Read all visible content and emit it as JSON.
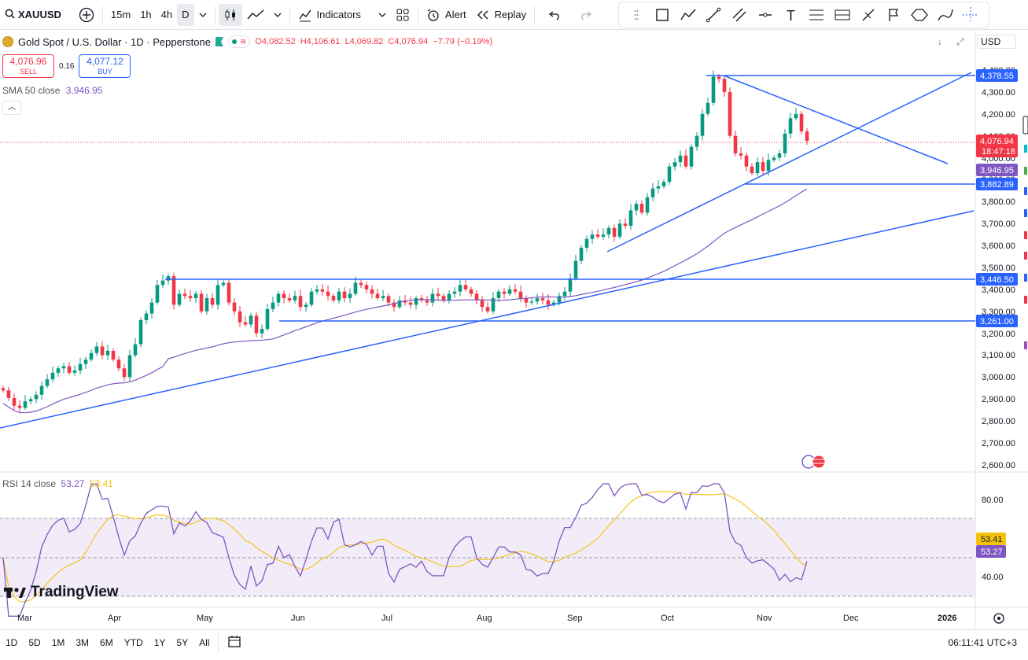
{
  "toolbar": {
    "symbol": "XAUUSD",
    "intervals": [
      "15m",
      "1h",
      "4h",
      "D"
    ],
    "active_interval": "D",
    "indicators_label": "Indicators",
    "alert_label": "Alert",
    "replay_label": "Replay"
  },
  "legend": {
    "title": "Gold Spot / U.S. Dollar · 1D · Pepperstone",
    "open": "O4,082.52",
    "high": "H4,106.61",
    "low": "L4,069.82",
    "close": "C4,076.94",
    "change": "−7.79 (−0.19%)"
  },
  "trade": {
    "sell_price": "4,076.96",
    "sell_label": "SELL",
    "spread": "0.16",
    "buy_price": "4,077.12",
    "buy_label": "BUY"
  },
  "sma": {
    "label": "SMA 50 close",
    "value": "3,946.95"
  },
  "rsi": {
    "label": "RSI 14 close",
    "value": "53.27",
    "signal": "53.41"
  },
  "price_axis": {
    "currency": "USD",
    "ticks": [
      "4,400.00",
      "4,300.00",
      "4,200.00",
      "4,100.00",
      "4,000.00",
      "3,900.00",
      "3,800.00",
      "3,700.00",
      "3,600.00",
      "3,500.00",
      "3,400.00",
      "3,300.00",
      "3,200.00",
      "3,100.00",
      "3,000.00",
      "2,900.00",
      "2,800.00",
      "2,700.00",
      "2,600.00"
    ],
    "rsi_ticks": [
      "80.00",
      "40.00"
    ],
    "tags": {
      "line_4378": "4,378.55",
      "last_price": "4,076.94",
      "countdown": "18:47:18",
      "sma": "3,946.95",
      "line_3882": "3,882.89",
      "line_3446": "3,446.50",
      "line_3261": "3,261.00",
      "rsi_signal": "53.41",
      "rsi_value": "53.27"
    }
  },
  "time_axis": [
    "Mar",
    "Apr",
    "May",
    "Jun",
    "Jul",
    "Aug",
    "Sep",
    "Oct",
    "Nov",
    "Dec",
    "2026"
  ],
  "brand": "TradingView",
  "bottombar": {
    "ranges": [
      "1D",
      "5D",
      "1M",
      "3M",
      "6M",
      "YTD",
      "1Y",
      "5Y",
      "All"
    ],
    "clock": "06:11:41 UTC+3"
  },
  "colors": {
    "up": "#089981",
    "down": "#f23645",
    "line": "#2962ff",
    "sma": "#7e57c2",
    "rsi_signal": "#f4c20d"
  },
  "chart_data": {
    "type": "candlestick",
    "ylim": [
      2600,
      4400
    ],
    "horizontal_levels": [
      4378.55,
      3882.89,
      3446.5,
      3261.0
    ],
    "last_price": 4076.94,
    "rsi_bands": [
      70,
      30
    ],
    "closes": [
      2940,
      2905,
      2870,
      2860,
      2890,
      2900,
      2920,
      2960,
      2990,
      3020,
      3040,
      3050,
      3020,
      3030,
      3060,
      3080,
      3110,
      3140,
      3100,
      3120,
      3080,
      3040,
      3000,
      3100,
      3150,
      3260,
      3290,
      3340,
      3420,
      3440,
      3460,
      3330,
      3380,
      3370,
      3360,
      3380,
      3300,
      3360,
      3330,
      3420,
      3430,
      3340,
      3300,
      3250,
      3240,
      3280,
      3200,
      3220,
      3310,
      3340,
      3380,
      3360,
      3350,
      3370,
      3320,
      3330,
      3390,
      3400,
      3390,
      3370,
      3350,
      3390,
      3360,
      3380,
      3430,
      3420,
      3400,
      3380,
      3360,
      3370,
      3340,
      3320,
      3350,
      3340,
      3330,
      3360,
      3350,
      3340,
      3380,
      3370,
      3350,
      3380,
      3390,
      3420,
      3400,
      3380,
      3350,
      3320,
      3300,
      3360,
      3390,
      3380,
      3400,
      3390,
      3360,
      3340,
      3345,
      3360,
      3350,
      3330,
      3340,
      3370,
      3390,
      3450,
      3530,
      3590,
      3630,
      3650,
      3640,
      3650,
      3680,
      3640,
      3700,
      3690,
      3760,
      3790,
      3750,
      3820,
      3860,
      3870,
      3890,
      3960,
      3980,
      4010,
      3960,
      4050,
      4100,
      4200,
      4250,
      4370,
      4360,
      4300,
      4100,
      4020,
      4010,
      3960,
      3930,
      3980,
      3940,
      3990,
      4000,
      4020,
      4110,
      4180,
      4200,
      4120,
      4077
    ]
  }
}
